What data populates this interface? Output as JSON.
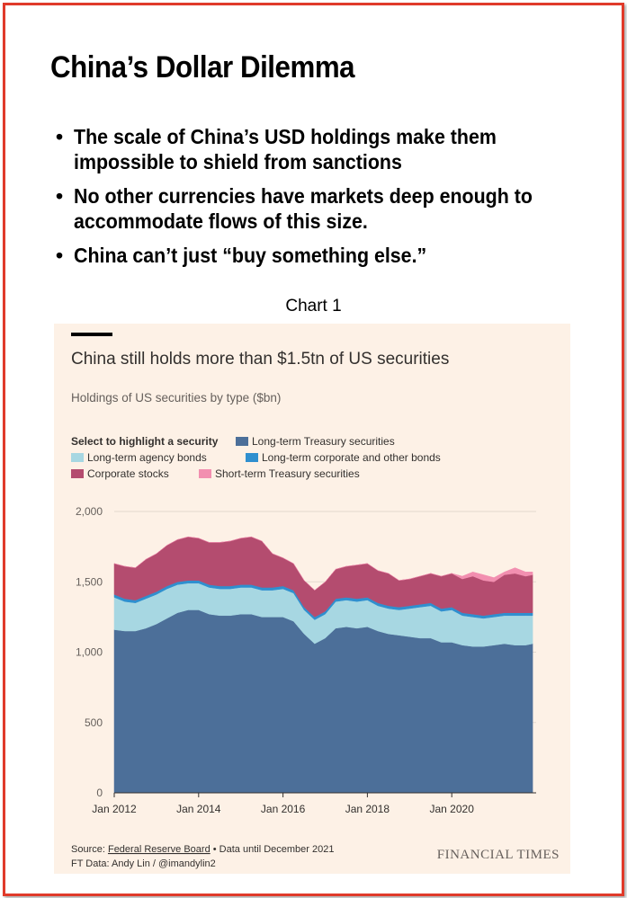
{
  "slide": {
    "title": "China’s Dollar Dilemma",
    "bullets": [
      "The scale of China’s USD holdings make them\nimpossible to shield from sanctions",
      "No other currencies have markets deep  enough to\naccommodate flows of this size.",
      "China can’t just “buy something else.”"
    ],
    "chart_caption": "Chart 1"
  },
  "chart_data": {
    "type": "area",
    "stacked": true,
    "title": "China still holds more than $1.5tn of US securities",
    "subtitle": "Holdings of US securities by type ($bn)",
    "legend_title": "Select to highlight a security",
    "legend_placement": "top",
    "x_tick_labels": [
      "Jan 2012",
      "Jan 2014",
      "Jan 2016",
      "Jan 2018",
      "Jan 2020"
    ],
    "y_ticks": [
      0,
      500,
      1000,
      1500,
      2000
    ],
    "y_tick_labels": [
      "0",
      "500",
      "1,000",
      "1,500",
      "2,000"
    ],
    "ylim": [
      0,
      2000
    ],
    "xlim": [
      2012.0,
      2021.917
    ],
    "grid": true,
    "x": [
      2012.0,
      2012.25,
      2012.5,
      2012.75,
      2013.0,
      2013.25,
      2013.5,
      2013.75,
      2014.0,
      2014.25,
      2014.5,
      2014.75,
      2015.0,
      2015.25,
      2015.5,
      2015.75,
      2016.0,
      2016.25,
      2016.5,
      2016.75,
      2017.0,
      2017.25,
      2017.5,
      2017.75,
      2018.0,
      2018.25,
      2018.5,
      2018.75,
      2019.0,
      2019.25,
      2019.5,
      2019.75,
      2020.0,
      2020.25,
      2020.5,
      2020.75,
      2021.0,
      2021.25,
      2021.5,
      2021.75,
      2021.917
    ],
    "series": [
      {
        "name": "Long-term Treasury securities",
        "color": "#4c6f99",
        "values": [
          1160,
          1150,
          1150,
          1170,
          1200,
          1240,
          1280,
          1300,
          1300,
          1270,
          1260,
          1260,
          1270,
          1270,
          1250,
          1250,
          1250,
          1220,
          1130,
          1060,
          1100,
          1170,
          1180,
          1170,
          1180,
          1150,
          1130,
          1120,
          1110,
          1100,
          1100,
          1070,
          1070,
          1050,
          1040,
          1040,
          1050,
          1060,
          1050,
          1050,
          1060
        ]
      },
      {
        "name": "Long-term agency bonds",
        "color": "#a7d7e2",
        "values": [
          230,
          210,
          200,
          210,
          210,
          210,
          200,
          190,
          190,
          190,
          190,
          190,
          190,
          190,
          190,
          190,
          200,
          200,
          170,
          170,
          170,
          190,
          190,
          190,
          190,
          180,
          180,
          180,
          200,
          220,
          230,
          220,
          230,
          210,
          210,
          200,
          200,
          200,
          210,
          210,
          200
        ]
      },
      {
        "name": "Long-term corporate and other bonds",
        "color": "#2f8fcf",
        "values": [
          20,
          20,
          20,
          20,
          20,
          20,
          20,
          20,
          20,
          20,
          20,
          20,
          20,
          20,
          20,
          20,
          20,
          20,
          20,
          20,
          20,
          20,
          20,
          20,
          20,
          20,
          20,
          20,
          20,
          20,
          20,
          20,
          20,
          20,
          20,
          20,
          20,
          20,
          20,
          20,
          20
        ]
      },
      {
        "name": "Corporate stocks",
        "color": "#b44c6f",
        "values": [
          220,
          230,
          230,
          260,
          270,
          290,
          300,
          310,
          300,
          300,
          310,
          320,
          330,
          340,
          330,
          240,
          200,
          190,
          190,
          190,
          210,
          210,
          220,
          240,
          240,
          230,
          230,
          190,
          190,
          200,
          210,
          230,
          240,
          240,
          270,
          250,
          230,
          270,
          280,
          260,
          270
        ]
      },
      {
        "name": "Short-term Treasury securities",
        "color": "#f28fb0",
        "values": [
          0,
          0,
          0,
          0,
          0,
          0,
          0,
          0,
          0,
          0,
          0,
          0,
          0,
          0,
          0,
          0,
          0,
          0,
          0,
          0,
          0,
          0,
          0,
          0,
          0,
          0,
          0,
          0,
          0,
          0,
          0,
          0,
          0,
          20,
          30,
          40,
          30,
          20,
          40,
          30,
          20
        ]
      }
    ],
    "source_label": "Source: ",
    "source_link": "Federal Reserve Board",
    "source_note": " • Data until December 2021",
    "credit": "FT Data: Andy Lin / @imandylin2",
    "brand": "FINANCIAL TIMES"
  }
}
